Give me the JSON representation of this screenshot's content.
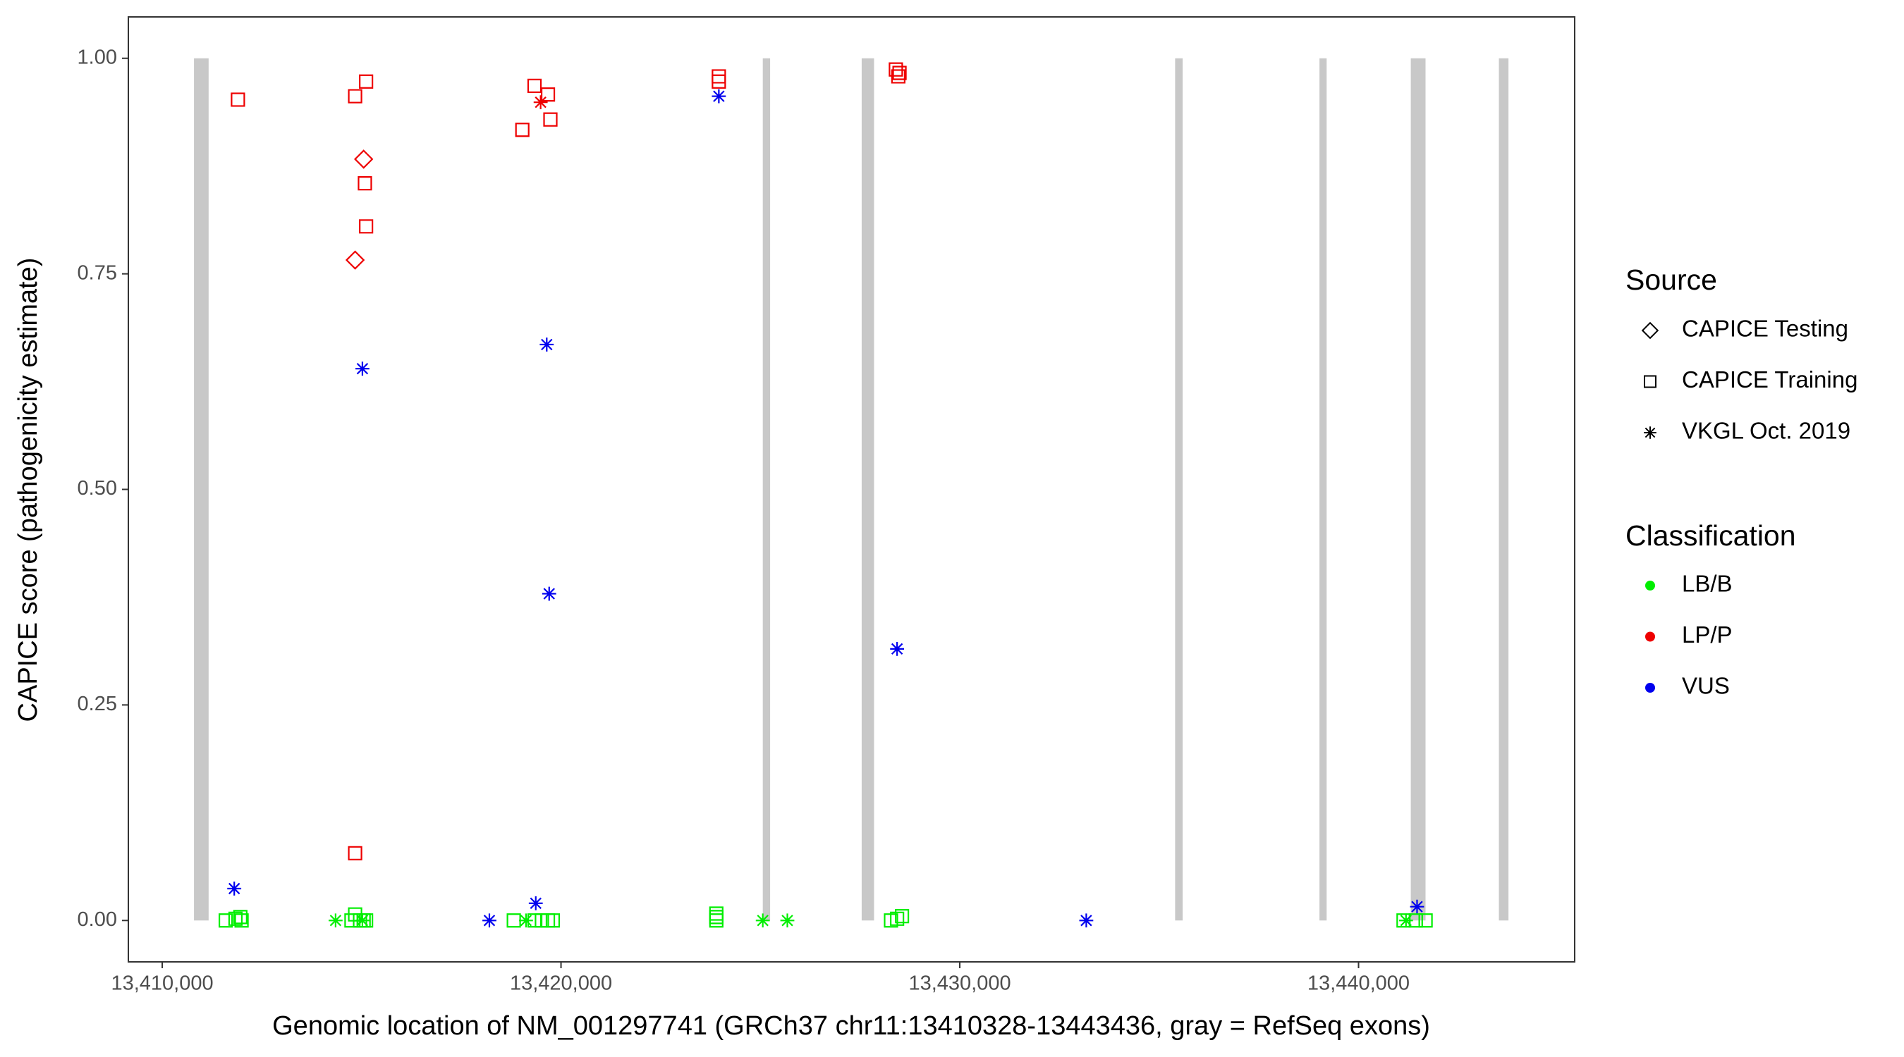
{
  "chart_data": {
    "type": "scatter",
    "x_label": "Genomic location of NM_001297741 (GRCh37 chr11:13410328-13443436, gray = RefSeq exons)",
    "y_label": "CAPICE score (pathogenicity estimate)",
    "xlim": [
      13409150,
      13445420
    ],
    "ylim": [
      -0.048,
      1.048
    ],
    "xticks": [
      {
        "value": 13410000,
        "label": "13,410,000"
      },
      {
        "value": 13420000,
        "label": "13,420,000"
      },
      {
        "value": 13430000,
        "label": "13,430,000"
      },
      {
        "value": 13440000,
        "label": "13,440,000"
      }
    ],
    "yticks": [
      {
        "value": 0,
        "label": "0.00"
      },
      {
        "value": 0.25,
        "label": "0.25"
      },
      {
        "value": 0.5,
        "label": "0.50"
      },
      {
        "value": 0.75,
        "label": "0.75"
      },
      {
        "value": 1,
        "label": "1.00"
      }
    ],
    "grid": false,
    "exon_color": "#c8c8c8",
    "exons": [
      [
        13410796,
        13411163
      ],
      [
        13425060,
        13425244
      ],
      [
        13427540,
        13427850
      ],
      [
        13435400,
        13435590
      ],
      [
        13439020,
        13439200
      ],
      [
        13441310,
        13441680
      ],
      [
        13443520,
        13443760
      ]
    ],
    "legend_source": {
      "title": "Source",
      "entries": [
        {
          "name": "CAPICE Testing",
          "shape": "diamond"
        },
        {
          "name": "CAPICE Training",
          "shape": "square"
        },
        {
          "name": "VKGL Oct. 2019",
          "shape": "star"
        }
      ]
    },
    "legend_classification": {
      "title": "Classification",
      "entries": [
        {
          "name": "LB/B",
          "color": "#00ee00"
        },
        {
          "name": "LP/P",
          "color": "#ee0000"
        },
        {
          "name": "VUS",
          "color": "#0000ee"
        }
      ]
    },
    "series": [
      {
        "source": "CAPICE Training",
        "classification": "LP/P",
        "shape": "square",
        "color": "#ee0000",
        "x": [
          13411898,
          13414837,
          13415112,
          13415082,
          13415112,
          13414837,
          13419030,
          13419336,
          13419673,
          13419734,
          13423958,
          13423958,
          13428397,
          13428489,
          13428459
        ],
        "values": [
          0.952,
          0.956,
          0.973,
          0.855,
          0.805,
          0.078,
          0.917,
          0.968,
          0.958,
          0.929,
          0.979,
          0.973,
          0.987,
          0.983,
          0.979
        ]
      },
      {
        "source": "CAPICE Testing",
        "classification": "LP/P",
        "shape": "diamond",
        "color": "#ee0000",
        "x": [
          13415051,
          13414837
        ],
        "values": [
          0.883,
          0.766
        ]
      },
      {
        "source": "VKGL Oct. 2019",
        "classification": "LP/P",
        "shape": "star",
        "color": "#ee0000",
        "x": [
          13419489
        ],
        "values": [
          0.949
        ]
      },
      {
        "source": "VKGL Oct. 2019",
        "classification": "VUS",
        "shape": "star",
        "color": "#0000ee",
        "x": [
          13411806,
          13415020,
          13419642,
          13419703,
          13423958,
          13428428,
          13418204,
          13419367,
          13433172,
          13441467
        ],
        "values": [
          0.037,
          0.64,
          0.668,
          0.379,
          0.956,
          0.315,
          0,
          0.02,
          0,
          0.016
        ]
      },
      {
        "source": "CAPICE Training",
        "classification": "LB/B",
        "shape": "square",
        "color": "#00ee00",
        "x": [
          13411592,
          13411837,
          13411959,
          13411990,
          13414837,
          13414745,
          13414960,
          13415051,
          13415112,
          13418816,
          13419336,
          13419520,
          13419673,
          13419795,
          13423895,
          13423895,
          13423895,
          13428275,
          13428428,
          13428551,
          13441128,
          13441437,
          13441682
        ],
        "values": [
          0,
          0.002,
          0.004,
          0,
          0.007,
          0,
          0,
          0,
          0,
          0,
          0,
          0,
          0,
          0,
          0,
          0.004,
          0.008,
          0,
          0.002,
          0.005,
          0,
          0,
          0
        ]
      },
      {
        "source": "VKGL Oct. 2019",
        "classification": "LB/B",
        "shape": "star",
        "color": "#00ee00",
        "x": [
          13414347,
          13419122,
          13425060,
          13425676,
          13415020,
          13441190
        ],
        "values": [
          0,
          0,
          0,
          0,
          0,
          0
        ]
      }
    ]
  }
}
